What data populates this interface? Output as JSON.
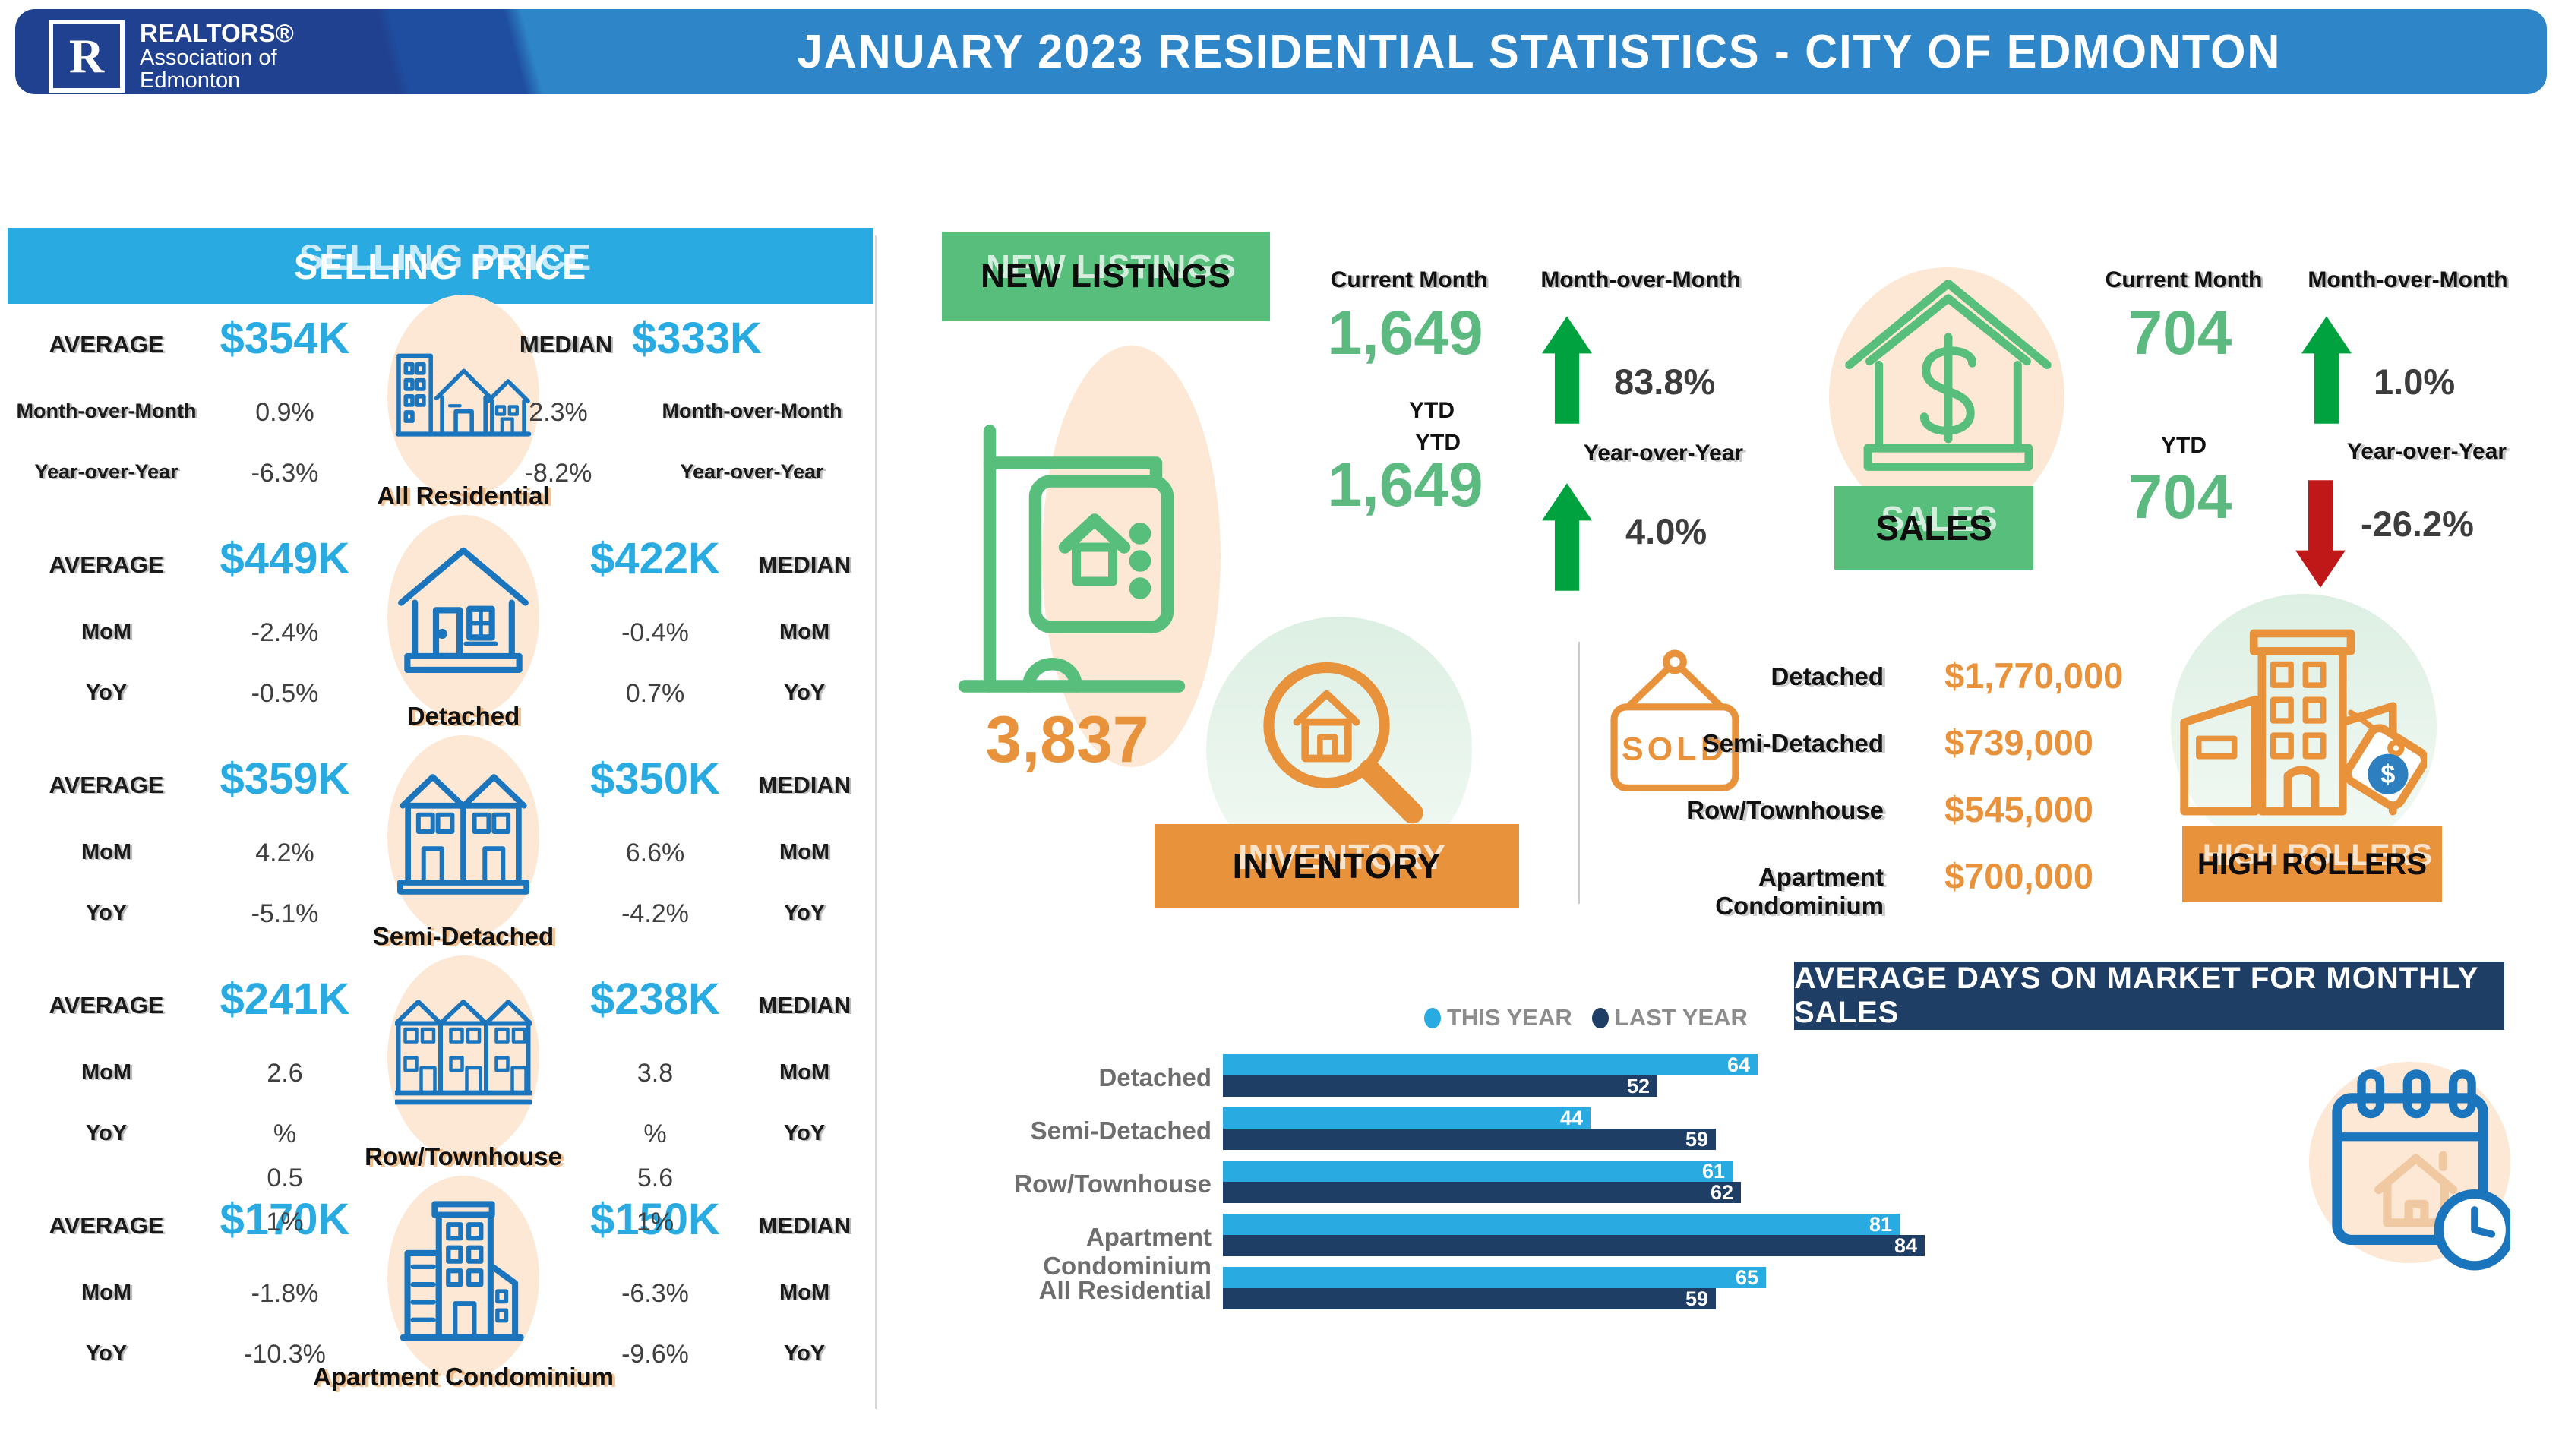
{
  "header": {
    "logo_r": "R",
    "org_line1": "REALTORS®",
    "org_line2": "Association of",
    "org_line3": "Edmonton",
    "title": "JANUARY 2023 RESIDENTIAL STATISTICS - CITY OF EDMONTON"
  },
  "selling_price": {
    "title": "SELLING PRICE",
    "rows": [
      {
        "name": "All Residential",
        "icon": "houses",
        "avg_label": "AVERAGE",
        "med_label": "MEDIAN",
        "avg": {
          "value": "$354K",
          "mom_label": "Month-over-Month",
          "mom": "0.9%",
          "yoy_label": "Year-over-Year",
          "yoy": "-6.3%",
          "extra": []
        },
        "med": {
          "value": "$333K",
          "mom_label": "Month-over-Month",
          "mom": "2.3%",
          "yoy_label": "Year-over-Year",
          "yoy": "-8.2%",
          "extra": []
        }
      },
      {
        "name": "Detached",
        "icon": "house",
        "avg_label": "AVERAGE",
        "med_label": "MEDIAN",
        "avg": {
          "value": "$449K",
          "mom_label": "MoM",
          "mom": "-2.4%",
          "yoy_label": "YoY",
          "yoy": "-0.5%",
          "extra": []
        },
        "med": {
          "value": "$422K",
          "mom_label": "MoM",
          "mom": "-0.4%",
          "yoy_label": "YoY",
          "yoy": "0.7%",
          "extra": []
        }
      },
      {
        "name": "Semi-Detached",
        "icon": "duplex",
        "avg_label": "AVERAGE",
        "med_label": "MEDIAN",
        "avg": {
          "value": "$359K",
          "mom_label": "MoM",
          "mom": "4.2%",
          "yoy_label": "YoY",
          "yoy": "-5.1%",
          "extra": []
        },
        "med": {
          "value": "$350K",
          "mom_label": "MoM",
          "mom": "6.6%",
          "yoy_label": "YoY",
          "yoy": "-4.2%",
          "extra": []
        }
      },
      {
        "name": "Row/Townhouse",
        "icon": "townhouse",
        "avg_label": "AVERAGE",
        "med_label": "MEDIAN",
        "avg": {
          "value": "$241K",
          "mom_label": "MoM",
          "mom": "2.6",
          "yoy_label": "YoY",
          "yoy": "%",
          "extra": [
            "0.5",
            "1%"
          ]
        },
        "med": {
          "value": "$238K",
          "mom_label": "MoM",
          "mom": "3.8",
          "yoy_label": "YoY",
          "yoy": "%",
          "extra": [
            "5.6",
            "1%"
          ]
        }
      },
      {
        "name": "Apartment Condominium",
        "icon": "apartment",
        "avg_label": "AVERAGE",
        "med_label": "MEDIAN",
        "avg": {
          "value": "$170K",
          "mom_label": "MoM",
          "mom": "-1.8%",
          "yoy_label": "YoY",
          "yoy": "-10.3%",
          "extra": []
        },
        "med": {
          "value": "$150K",
          "mom_label": "MoM",
          "mom": "-6.3%",
          "yoy_label": "YoY",
          "yoy": "-9.6%",
          "extra": []
        }
      }
    ]
  },
  "new_listings": {
    "label": "NEW LISTINGS",
    "current_month_label": "Current Month",
    "current_month": "1,649",
    "mom_label": "Month-over-Month",
    "mom": "83.8%",
    "mom_dir": "up",
    "ytd_label": "YTD",
    "ytd_label2": "YTD",
    "ytd": "1,649",
    "yoy_label": "Year-over-Year",
    "yoy": "4.0%",
    "yoy_dir": "up"
  },
  "sales": {
    "label": "SALES",
    "current_month_label": "Current Month",
    "current_month": "704",
    "mom_label": "Month-over-Month",
    "mom": "1.0%",
    "mom_dir": "up",
    "ytd_label": "YTD",
    "ytd": "704",
    "yoy_label": "Year-over-Year",
    "yoy": "-26.2%",
    "yoy_dir": "down"
  },
  "inventory": {
    "value": "3,837",
    "label": "INVENTORY"
  },
  "high_rollers": {
    "label": "HIGH ROLLERS",
    "sold_sign_text": "SOLD",
    "items": [
      {
        "name": "Detached",
        "price": "$1,770,000"
      },
      {
        "name": "Semi-Detached",
        "price": "$739,000"
      },
      {
        "name": "Row/Townhouse",
        "price": "$545,000"
      },
      {
        "name": "Apartment Condominium",
        "price": "$700,000"
      }
    ]
  },
  "days_on_market": {
    "title": "AVERAGE DAYS ON MARKET FOR MONTHLY SALES"
  },
  "chart_data": {
    "type": "bar",
    "orientation": "horizontal",
    "title": "AVERAGE DAYS ON MARKET FOR MONTHLY SALES",
    "categories": [
      "Detached",
      "Semi-Detached",
      "Row/Townhouse",
      "Apartment Condominium",
      "All Residential"
    ],
    "series": [
      {
        "name": "THIS YEAR",
        "color": "#29ABE2",
        "values": [
          64,
          44,
          61,
          81,
          65
        ]
      },
      {
        "name": "LAST YEAR",
        "color": "#1F3E66",
        "values": [
          52,
          59,
          62,
          84,
          59
        ]
      }
    ],
    "value_labels": true,
    "legend_position": "top",
    "xlim": [
      0,
      90
    ],
    "grid": false
  },
  "colors": {
    "cyan": "#29ABE2",
    "navy": "#1F3E66",
    "green_box": "#57BE7C",
    "green_number": "#5CB97F",
    "green_arrow": "#00A23F",
    "red_arrow": "#C01818",
    "orange": "#E8923C",
    "icon_blue": "#1B75BC",
    "peach": "#FCE8D5",
    "mint": "#E0F0E6"
  }
}
